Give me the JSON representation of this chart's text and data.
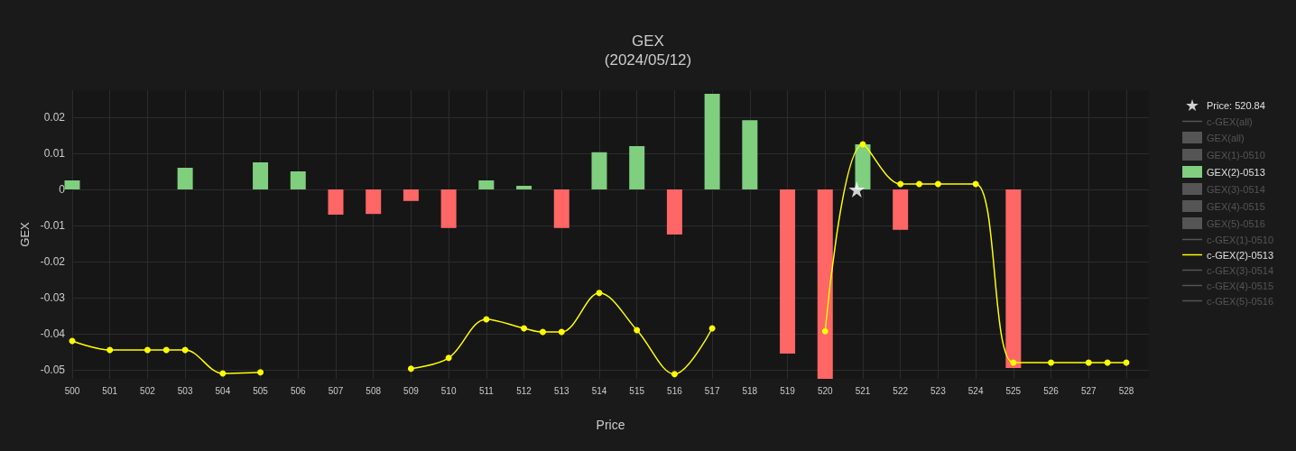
{
  "chart_data": {
    "type": "bar",
    "title": "GEX",
    "subtitle": "(2024/05/12)",
    "xlabel": "Price",
    "ylabel": "GEX",
    "xlim": [
      500,
      528.6
    ],
    "xticks": [
      500,
      501,
      502,
      503,
      504,
      505,
      506,
      507,
      508,
      509,
      510,
      511,
      512,
      513,
      514,
      515,
      516,
      517,
      518,
      519,
      520,
      521,
      522,
      523,
      524,
      525,
      526,
      527,
      528
    ],
    "ylim": [
      -0.0525,
      0.0275
    ],
    "yticks": [
      -0.05,
      -0.04,
      -0.03,
      -0.02,
      -0.01,
      0,
      0.01,
      0.02
    ],
    "grid": true,
    "legend": "right",
    "series": [
      {
        "name": "Price: 520.84",
        "type": "scatter",
        "marker": "star",
        "color": "#ffffff",
        "x": [
          520.84
        ],
        "values": [
          0
        ]
      },
      {
        "name": "c-GEX(all)",
        "type": "line"
      },
      {
        "name": "GEX(all)"
      },
      {
        "name": "GEX(1)-0510"
      },
      {
        "name": "GEX(2)-0513",
        "color": "#7fcf7f",
        "x": [
          500,
          503,
          505,
          506,
          507,
          508,
          509,
          510,
          511,
          512,
          513,
          514,
          515,
          516,
          517,
          518,
          519,
          520,
          521,
          522,
          525
        ],
        "values": [
          0.0025,
          0.006,
          0.0075,
          0.005,
          -0.007,
          -0.0068,
          -0.0032,
          -0.0107,
          0.0025,
          0.001,
          -0.0107,
          0.0103,
          0.012,
          -0.0125,
          0.0265,
          0.0192,
          -0.0455,
          -0.0525,
          0.0125,
          -0.0112,
          -0.0495
        ],
        "colors": [
          "#7fcf7f",
          "#7fcf7f",
          "#7fcf7f",
          "#7fcf7f",
          "#ff6666",
          "#ff6666",
          "#ff6666",
          "#ff6666",
          "#7fcf7f",
          "#7fcf7f",
          "#ff6666",
          "#7fcf7f",
          "#7fcf7f",
          "#ff6666",
          "#7fcf7f",
          "#7fcf7f",
          "#ff6666",
          "#ff6666",
          "#7fcf7f",
          "#ff6666",
          "#ff6666"
        ]
      },
      {
        "name": "GEX(3)-0514"
      },
      {
        "name": "GEX(4)-0515"
      },
      {
        "name": "GEX(5)-0516"
      },
      {
        "name": "c-GEX(1)-0510",
        "type": "line"
      },
      {
        "name": "c-GEX(2)-0513",
        "type": "line",
        "marker": "circle",
        "color": "#ffff00",
        "x": [
          500,
          501,
          502,
          502.5,
          503,
          504,
          505,
          506,
          507,
          508,
          509,
          510,
          511,
          512,
          512.5,
          513,
          514,
          515,
          516,
          517,
          518,
          519,
          520,
          521,
          522,
          522.5,
          523,
          524,
          525,
          526,
          527,
          527.5,
          528
        ],
        "values": [
          -0.042,
          -0.0445,
          -0.0445,
          -0.0445,
          -0.0445,
          -0.051,
          -0.0507,
          null,
          null,
          null,
          -0.0497,
          -0.0467,
          -0.036,
          -0.0385,
          -0.0395,
          -0.0395,
          -0.0287,
          -0.039,
          -0.0512,
          -0.0385,
          null,
          null,
          -0.0393,
          0.0125,
          0.0015,
          0.0015,
          0.0015,
          0.0015,
          -0.048,
          -0.048,
          -0.048,
          -0.048,
          -0.048
        ]
      },
      {
        "name": "c-GEX(3)-0514",
        "type": "line"
      },
      {
        "name": "c-GEX(4)-0515",
        "type": "line"
      },
      {
        "name": "c-GEX(5)-0516",
        "type": "line"
      }
    ]
  }
}
